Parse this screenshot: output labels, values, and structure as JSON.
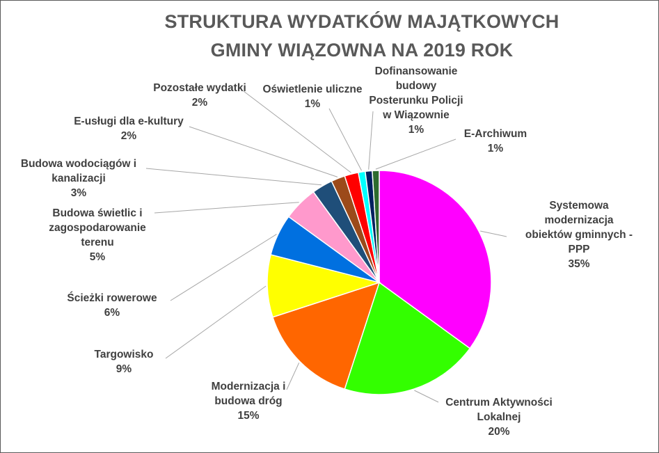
{
  "chart_data": {
    "type": "pie",
    "title_line1": "STRUKTURA WYDATKÓW  MAJĄTKOWYCH",
    "title_line2": "GMINY WIĄZOWNA  NA 2019 ROK",
    "slices": [
      {
        "label": "Systemowa modernizacja obiektów gminnych - PPP",
        "value": 35,
        "display": "35%",
        "color": "#FF00FF"
      },
      {
        "label": "Centrum Aktywności Lokalnej",
        "value": 20,
        "display": "20%",
        "color": "#33FF00"
      },
      {
        "label": "Modernizacja i budowa dróg",
        "value": 15,
        "display": "15%",
        "color": "#FF6600"
      },
      {
        "label": "Targowisko",
        "value": 9,
        "display": "9%",
        "color": "#FFFF00"
      },
      {
        "label": "Ścieżki rowerowe",
        "value": 6,
        "display": "6%",
        "color": "#0070E0"
      },
      {
        "label": "Budowa świetlic i zagospodarowanie terenu",
        "value": 5,
        "display": "5%",
        "color": "#FF99CC"
      },
      {
        "label": "Budowa wodociągów i kanalizacji",
        "value": 3,
        "display": "3%",
        "color": "#1F4E79"
      },
      {
        "label": "E-usługi dla e-kultury",
        "value": 2,
        "display": "2%",
        "color": "#9C4A1A"
      },
      {
        "label": "Pozostałe wydatki",
        "value": 2,
        "display": "2%",
        "color": "#FF0000"
      },
      {
        "label": "Oświetlenie uliczne",
        "value": 1,
        "display": "1%",
        "color": "#00FFFF"
      },
      {
        "label": "Dofinansowanie budowy Posterunku Policji w Wiązownie",
        "value": 1,
        "display": "1%",
        "color": "#002060"
      },
      {
        "label": "E-Archiwum",
        "value": 1,
        "display": "1%",
        "color": "#2E6B2E"
      }
    ]
  }
}
